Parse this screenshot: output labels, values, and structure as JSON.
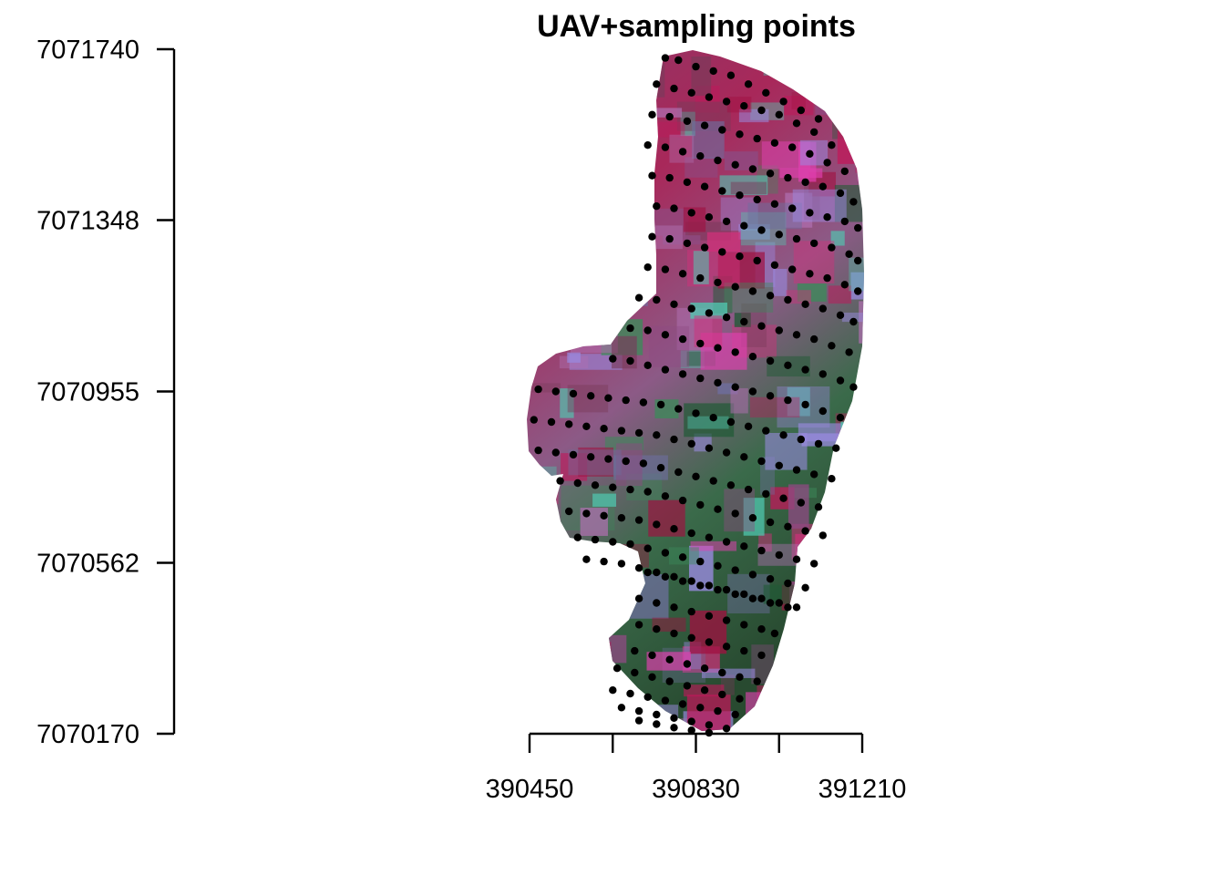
{
  "chart_data": {
    "type": "scatter",
    "title": "UAV+sampling points",
    "xlabel": "",
    "ylabel": "",
    "xlim": [
      390450,
      391210
    ],
    "ylim": [
      7070170,
      7071740
    ],
    "x_ticks": [
      390450,
      390640,
      390830,
      391020,
      391210
    ],
    "x_tick_labels": [
      "390450",
      "",
      "390830",
      "",
      "391210"
    ],
    "y_ticks": [
      7070170,
      7070562,
      7070955,
      7071348,
      7071740
    ],
    "y_tick_labels": [
      "7070170",
      "7070562",
      "7070955",
      "7071348",
      "7071740"
    ],
    "grid": false,
    "legend": "none",
    "background_raster": "UAV false-color orthomosaic (magenta, crimson, green, lavender, cyan tones)",
    "point_color": "#000000",
    "series": [
      {
        "x": [
          390760,
          390790,
          390830,
          390870,
          390910,
          390950,
          390990,
          391030,
          391070,
          391110,
          390740,
          390780,
          390820,
          390860,
          390900,
          390940,
          390980,
          391020,
          391060,
          391100,
          391140,
          390730,
          390770,
          390810,
          390850,
          390890,
          390930,
          390970,
          391010,
          391050,
          391090,
          391130,
          391170,
          390720,
          390760,
          390800,
          390840,
          390880,
          390920,
          390960,
          391000,
          391040,
          391080,
          391120,
          391160,
          391190,
          390730,
          390770,
          390810,
          390850,
          390890,
          390930,
          390970,
          391010,
          391050,
          391090,
          391130,
          391170,
          391200,
          390740,
          390780,
          390820,
          390860,
          390900,
          390940,
          390980,
          391020,
          391060,
          391100,
          391140,
          391180,
          391200,
          390730,
          390770,
          390810,
          390850,
          390890,
          390930,
          390970,
          391010,
          391050,
          391090,
          391130,
          391170,
          391200,
          390720,
          390760,
          390800,
          390840,
          390880,
          390920,
          390960,
          391000,
          391040,
          391080,
          391120,
          391160,
          391190,
          390700,
          390740,
          390780,
          390820,
          390860,
          390900,
          390940,
          390980,
          391020,
          391060,
          391100,
          391140,
          391180,
          390680,
          390720,
          390760,
          390800,
          390840,
          390880,
          390920,
          390960,
          391000,
          391040,
          391080,
          391120,
          391160,
          391190,
          390640,
          390680,
          390720,
          390760,
          390800,
          390840,
          390880,
          390920,
          390960,
          391000,
          391040,
          391080,
          391120,
          391160,
          390470,
          390510,
          390550,
          390590,
          390630,
          390670,
          390710,
          390750,
          390790,
          390830,
          390870,
          390910,
          390950,
          390990,
          391030,
          391070,
          391110,
          391150,
          390460,
          390500,
          390540,
          390580,
          390620,
          390660,
          390700,
          390740,
          390780,
          390820,
          390860,
          390900,
          390940,
          390980,
          391020,
          391060,
          391100,
          391140,
          390470,
          390510,
          390550,
          390590,
          390630,
          390670,
          390710,
          390750,
          390790,
          390830,
          390870,
          390910,
          390950,
          390990,
          391030,
          391070,
          391110,
          390520,
          390560,
          390600,
          390640,
          390680,
          390720,
          390760,
          390800,
          390840,
          390880,
          390920,
          390960,
          391000,
          391040,
          391080,
          391120,
          390540,
          390580,
          390620,
          390660,
          390700,
          390740,
          390780,
          390820,
          390860,
          390900,
          390940,
          390980,
          391020,
          391060,
          391100,
          390560,
          390600,
          390640,
          390680,
          390720,
          390760,
          390800,
          390840,
          390880,
          390920,
          390960,
          391000,
          391040,
          391080,
          390580,
          390620,
          390660,
          390700,
          390740,
          390780,
          390820,
          390860,
          390900,
          390940,
          390980,
          391020,
          391060,
          390720,
          390760,
          390800,
          390840,
          390880,
          390920,
          390960,
          391000,
          391040,
          390700,
          390740,
          390780,
          390820,
          390860,
          390900,
          390940,
          390980,
          391010,
          390700,
          390740,
          390780,
          390820,
          390860,
          390900,
          390940,
          390980,
          390690,
          390730,
          390770,
          390810,
          390850,
          390890,
          390930,
          390970,
          390650,
          390690,
          390730,
          390770,
          390810,
          390850,
          390890,
          390930,
          390640,
          390680,
          390720,
          390760,
          390800,
          390840,
          390880,
          390920,
          390660,
          390700,
          390740,
          390780,
          390820,
          390860,
          390900,
          390700,
          390740,
          390780,
          390820,
          390860
        ],
        "y": [
          7071720,
          7071715,
          7071700,
          7071690,
          7071680,
          7071660,
          7071640,
          7071620,
          7071600,
          7071580,
          7071660,
          7071650,
          7071640,
          7071630,
          7071620,
          7071610,
          7071600,
          7071590,
          7071570,
          7071550,
          7071520,
          7071590,
          7071585,
          7071575,
          7071565,
          7071555,
          7071545,
          7071535,
          7071525,
          7071515,
          7071500,
          7071480,
          7071460,
          7071520,
          7071515,
          7071505,
          7071495,
          7071485,
          7071475,
          7071465,
          7071455,
          7071445,
          7071435,
          7071425,
          7071410,
          7071390,
          7071450,
          7071445,
          7071435,
          7071425,
          7071415,
          7071405,
          7071395,
          7071385,
          7071375,
          7071365,
          7071355,
          7071345,
          7071330,
          7071380,
          7071375,
          7071365,
          7071355,
          7071345,
          7071335,
          7071325,
          7071315,
          7071305,
          7071295,
          7071285,
          7071270,
          7071255,
          7071310,
          7071305,
          7071295,
          7071285,
          7071275,
          7071265,
          7071255,
          7071245,
          7071235,
          7071225,
          7071215,
          7071200,
          7071185,
          7071240,
          7071235,
          7071225,
          7071215,
          7071205,
          7071195,
          7071185,
          7071175,
          7071165,
          7071155,
          7071145,
          7071130,
          7071115,
          7071170,
          7071165,
          7071155,
          7071145,
          7071135,
          7071125,
          7071115,
          7071105,
          7071095,
          7071085,
          7071075,
          7071060,
          7071045,
          7071100,
          7071095,
          7071085,
          7071075,
          7071065,
          7071055,
          7071045,
          7071035,
          7071025,
          7071015,
          7071005,
          7070995,
          7070980,
          7070965,
          7071030,
          7071025,
          7071015,
          7071005,
          7070995,
          7070985,
          7070975,
          7070965,
          7070955,
          7070945,
          7070935,
          7070925,
          7070910,
          7070895,
          7070960,
          7070955,
          7070950,
          7070945,
          7070940,
          7070935,
          7070930,
          7070925,
          7070915,
          7070905,
          7070895,
          7070885,
          7070875,
          7070865,
          7070855,
          7070845,
          7070835,
          7070825,
          7070890,
          7070885,
          7070880,
          7070875,
          7070870,
          7070865,
          7070860,
          7070855,
          7070845,
          7070835,
          7070825,
          7070815,
          7070805,
          7070795,
          7070785,
          7070775,
          7070765,
          7070755,
          7070820,
          7070815,
          7070810,
          7070805,
          7070800,
          7070795,
          7070790,
          7070780,
          7070770,
          7070760,
          7070750,
          7070740,
          7070730,
          7070720,
          7070710,
          7070700,
          7070690,
          7070750,
          7070745,
          7070740,
          7070735,
          7070730,
          7070725,
          7070715,
          7070705,
          7070695,
          7070685,
          7070675,
          7070665,
          7070655,
          7070645,
          7070635,
          7070625,
          7070680,
          7070675,
          7070670,
          7070665,
          7070660,
          7070650,
          7070640,
          7070630,
          7070620,
          7070610,
          7070600,
          7070590,
          7070580,
          7070570,
          7070560,
          7070620,
          7070615,
          7070610,
          7070605,
          7070595,
          7070585,
          7070575,
          7070565,
          7070555,
          7070545,
          7070535,
          7070525,
          7070515,
          7070505,
          7070570,
          7070565,
          7070560,
          7070550,
          7070540,
          7070530,
          7070520,
          7070510,
          7070500,
          7070490,
          7070480,
          7070470,
          7070460,
          7070540,
          7070530,
          7070520,
          7070510,
          7070500,
          7070490,
          7070480,
          7070470,
          7070460,
          7070480,
          7070470,
          7070460,
          7070450,
          7070440,
          7070430,
          7070420,
          7070410,
          7070400,
          7070420,
          7070410,
          7070400,
          7070390,
          7070380,
          7070370,
          7070360,
          7070350,
          7070360,
          7070350,
          7070340,
          7070330,
          7070320,
          7070310,
          7070300,
          7070290,
          7070320,
          7070310,
          7070300,
          7070290,
          7070280,
          7070270,
          7070260,
          7070250,
          7070270,
          7070262,
          7070254,
          7070246,
          7070238,
          7070230,
          7070222,
          7070214,
          7070230,
          7070222,
          7070214,
          7070206,
          7070198,
          7070190,
          7070182,
          7070200,
          7070192,
          7070184,
          7070178,
          7070172
        ]
      }
    ]
  }
}
